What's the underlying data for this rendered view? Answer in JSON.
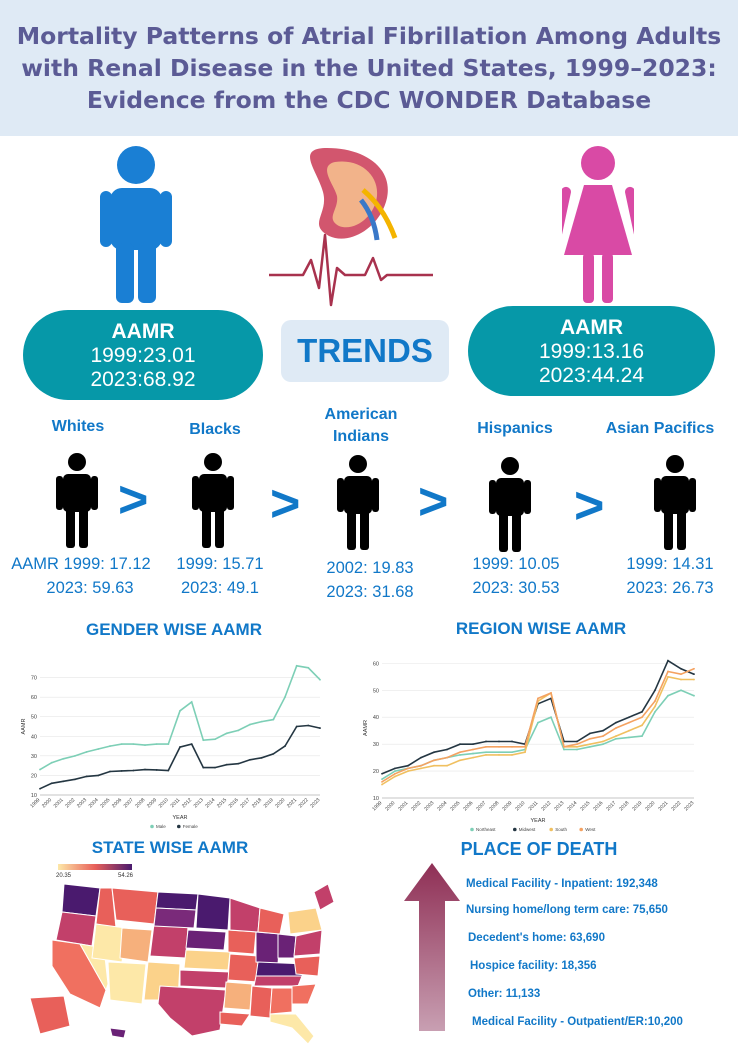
{
  "title": "Mortality Patterns of Atrial Fibrillation Among Adults with Renal Disease in the United States, 1999–2023: Evidence from the CDC WONDER Database",
  "trends_label": "TRENDS",
  "male": {
    "heading": "AAMR",
    "line1": "1999:23.01",
    "line2": "2023:68.92",
    "color": "#1a7fd4"
  },
  "female": {
    "heading": "AAMR",
    "line1": "1999:13.16",
    "line2": "2023:44.24",
    "color": "#d94aa5"
  },
  "ethnicity": [
    {
      "label": "Whites",
      "line1": "AAMR 1999: 17.12",
      "line2": "2023: 59.63"
    },
    {
      "label": "Blacks",
      "line1": "1999: 15.71",
      "line2": "2023: 49.1"
    },
    {
      "label": "American Indians",
      "line1": "2002: 19.83",
      "line2": "2023: 31.68"
    },
    {
      "label": "Hispanics",
      "line1": "1999: 10.05",
      "line2": "2023: 30.53"
    },
    {
      "label": "Asian Pacifics",
      "line1": "1999: 14.31",
      "line2": "2023: 26.73"
    }
  ],
  "gt_symbol": ">",
  "sections": {
    "gender": "GENDER WISE AAMR",
    "region": "REGION WISE AAMR",
    "state": "STATE WISE AAMR",
    "place": "PLACE OF DEATH"
  },
  "chart_data": [
    {
      "type": "line",
      "title": "",
      "xlabel": "YEAR",
      "ylabel": "AAMR",
      "x": [
        "1999",
        "2000",
        "2001",
        "2002",
        "2003",
        "2004",
        "2005",
        "2006",
        "2007",
        "2008",
        "2009",
        "2010",
        "2011",
        "2012",
        "2013",
        "2014",
        "2015",
        "2016",
        "2017",
        "2018",
        "2019",
        "2020",
        "2021",
        "2022",
        "2023"
      ],
      "ylim": [
        10,
        80
      ],
      "yticks": [
        10,
        20,
        30,
        40,
        50,
        60,
        70
      ],
      "legend": "bottom",
      "series": [
        {
          "name": "Male",
          "color": "#7dcfb6",
          "values": [
            23.0,
            26.5,
            28.5,
            30,
            32,
            33.5,
            35,
            36,
            36,
            35.5,
            36,
            36,
            53,
            57.5,
            38,
            38.5,
            41.5,
            43,
            46,
            47.5,
            48.5,
            60,
            76,
            75,
            68.9
          ]
        },
        {
          "name": "Female",
          "color": "#243642",
          "values": [
            13.2,
            16,
            17,
            18,
            19.5,
            20,
            22,
            22.3,
            22.5,
            23,
            22.8,
            22.5,
            34.5,
            36,
            24,
            24,
            25.5,
            26,
            28,
            29,
            31,
            35,
            45,
            45.5,
            44.2
          ]
        }
      ]
    },
    {
      "type": "line",
      "title": "",
      "xlabel": "YEAR",
      "ylabel": "AAMR",
      "x": [
        "1999",
        "2000",
        "2001",
        "2002",
        "2003",
        "2004",
        "2005",
        "2006",
        "2007",
        "2008",
        "2009",
        "2010",
        "2011",
        "2012",
        "2013",
        "2014",
        "2015",
        "2016",
        "2017",
        "2018",
        "2019",
        "2020",
        "2021",
        "2022",
        "2023"
      ],
      "ylim": [
        10,
        62
      ],
      "yticks": [
        10,
        20,
        30,
        40,
        50,
        60
      ],
      "legend": "bottom",
      "series": [
        {
          "name": "Northeast",
          "color": "#7dcfb6",
          "values": [
            17,
            20,
            21,
            22,
            24,
            25,
            26,
            26.5,
            27,
            27,
            27,
            28,
            38,
            40,
            28,
            28,
            29,
            30,
            32,
            32.5,
            33,
            42,
            48,
            50,
            48
          ]
        },
        {
          "name": "Midwest",
          "color": "#243642",
          "values": [
            19,
            21,
            22,
            25,
            27,
            28,
            30,
            30,
            31,
            31,
            31,
            30,
            45,
            47,
            31,
            31,
            34,
            35,
            38,
            40,
            42,
            50,
            61,
            58,
            56
          ]
        },
        {
          "name": "South",
          "color": "#f0c060",
          "values": [
            15,
            18,
            20,
            21,
            22,
            22,
            24,
            25,
            26,
            26,
            26,
            27,
            46,
            49,
            29,
            29,
            30,
            31,
            33,
            35,
            37,
            44,
            55,
            54,
            54
          ]
        },
        {
          "name": "West",
          "color": "#f4a261",
          "values": [
            16,
            19,
            21,
            22,
            24,
            25,
            27,
            28,
            29,
            29,
            29,
            29,
            47,
            49,
            29,
            30,
            32,
            33,
            36,
            38,
            40,
            46,
            57,
            56,
            58
          ]
        }
      ]
    }
  ],
  "state_map": {
    "min_label": "20.35",
    "max_label": "54.26",
    "low_color": "#fde8a8",
    "high_color": "#4a1a6e"
  },
  "place_of_death": [
    "Medical Facility - Inpatient: 192,348",
    "Nursing home/long term care: 75,650",
    "Decedent's home: 63,690",
    "Hospice facility: 18,356",
    "Other: 11,133",
    "Medical Facility - Outpatient/ER:10,200"
  ],
  "accent": "#1178c8",
  "teal": "#0698a8",
  "arrow_color": "#9b4a6a"
}
